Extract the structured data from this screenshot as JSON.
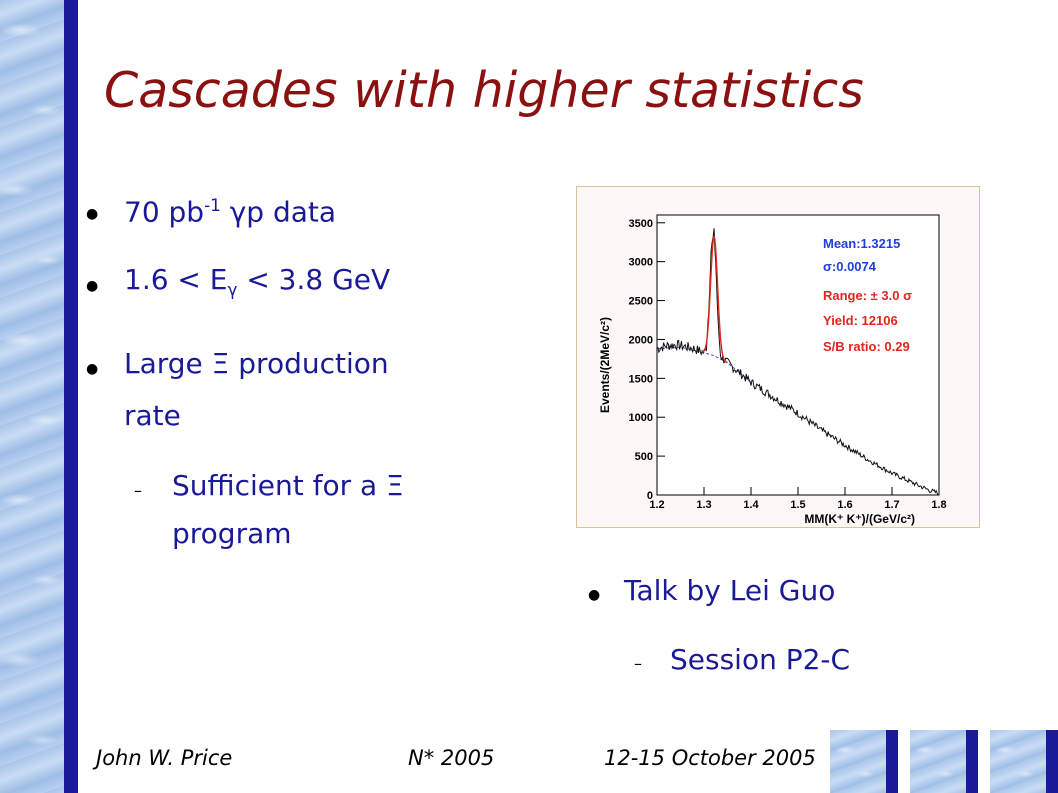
{
  "slide": {
    "title": "Cascades with higher statistics",
    "bullets": {
      "b1_pre": "70 pb",
      "b1_sup": "-1",
      "b1_post": " γp data",
      "b2_pre": "1.6 < E",
      "b2_sub": "γ",
      "b2_post": " < 3.8 GeV",
      "b3_line1": "Large Ξ production",
      "b3_line2": "rate",
      "b3_sub_line1": "Sufficient for a Ξ",
      "b3_sub_line2": "program",
      "b4": "Talk by Lei Guo",
      "b4_sub": "Session P2-C"
    },
    "footer": {
      "author": "John W. Price",
      "conference": "N* 2005",
      "date": "12-15 October 2005"
    }
  },
  "plot": {
    "ylabel": "Events/(2MeV/c²)",
    "xlabel": "MM(K⁺ K⁺)/(GeV/c²)",
    "legend": {
      "mean": "Mean:1.3215",
      "sigma": "σ:0.0074",
      "range": "Range: ± 3.0 σ",
      "yield": "Yield: 12106",
      "sb": "S/B ratio:   0.29"
    },
    "legend_colors": {
      "blue": "#1f3fd6",
      "red": "#e0261e"
    }
  },
  "chart_data": {
    "type": "line",
    "xlabel": "MM(K⁺ K⁺)/(GeV/c²)",
    "ylabel": "Events/(2MeV/c²)",
    "xlim": [
      1.2,
      1.8
    ],
    "ylim": [
      0,
      3600
    ],
    "x_ticks": [
      "1.2",
      "1.3",
      "1.4",
      "1.5",
      "1.6",
      "1.7",
      "1.8"
    ],
    "y_ticks": [
      "0",
      "500",
      "1000",
      "1500",
      "2000",
      "2500",
      "3000",
      "3500"
    ],
    "series": [
      {
        "x": [
          1.2,
          1.22,
          1.24,
          1.26,
          1.28,
          1.3,
          1.305,
          1.31,
          1.315,
          1.3215,
          1.325,
          1.33,
          1.335,
          1.34,
          1.35,
          1.37,
          1.4,
          1.45,
          1.5,
          1.55,
          1.6,
          1.65,
          1.7,
          1.75,
          1.78,
          1.8
        ],
        "values": [
          1880,
          1920,
          1930,
          1910,
          1880,
          1830,
          1900,
          2400,
          3150,
          3350,
          3000,
          2200,
          1800,
          1760,
          1700,
          1600,
          1450,
          1250,
          1050,
          830,
          640,
          450,
          280,
          140,
          60,
          20
        ]
      },
      {
        "x": [
          1.2,
          1.25,
          1.3,
          1.3215,
          1.35,
          1.4
        ],
        "values": [
          1880,
          1900,
          1830,
          1790,
          1700,
          1450
        ]
      }
    ]
  }
}
